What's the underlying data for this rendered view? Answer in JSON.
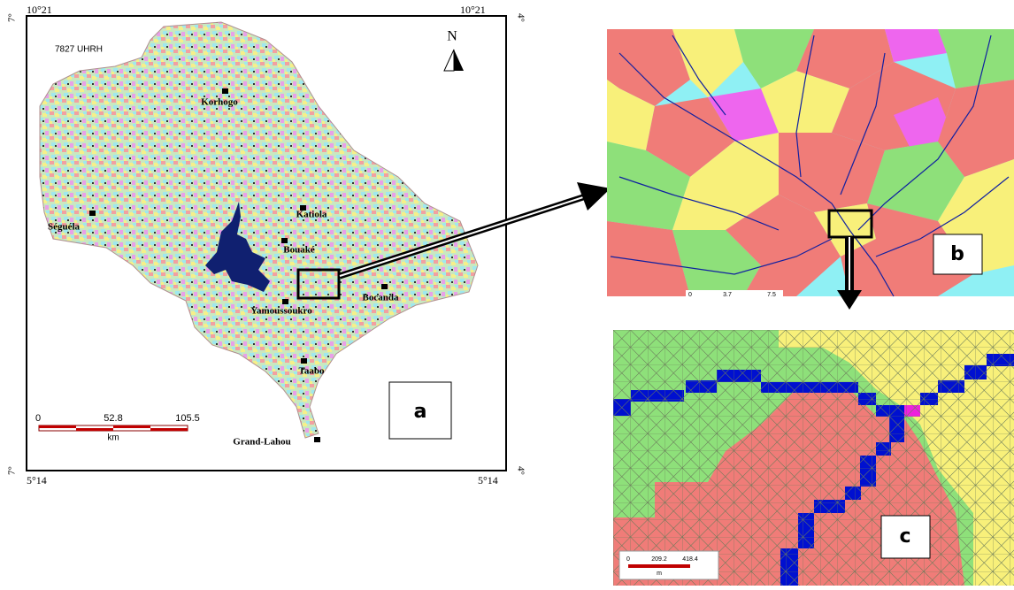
{
  "panel_a": {
    "corners": {
      "top_left": "10°21",
      "top_right": "10°21",
      "bottom_left": "5°14",
      "bottom_right": "5°14",
      "left_top": "7°",
      "left_bottom": "7°",
      "right_top": "4°",
      "right_bottom": "4°"
    },
    "count_label": "7827 UHRH",
    "north": "N",
    "cities": [
      "Korhogo",
      "Séguéla",
      "Katiola",
      "Bouaké",
      "Bocanda",
      "Yamoussoukro",
      "Taabo",
      "Grand-Lahou"
    ],
    "scale": {
      "ticks": [
        "0",
        "52.8",
        "105.5"
      ],
      "unit": "km"
    },
    "label": "a"
  },
  "panel_b": {
    "scale": {
      "ticks": [
        "0",
        "3.7",
        "7.5"
      ]
    },
    "label": "b"
  },
  "panel_c": {
    "scale": {
      "ticks": [
        "0",
        "209.2",
        "418.4"
      ],
      "unit": "m"
    },
    "label": "c"
  }
}
